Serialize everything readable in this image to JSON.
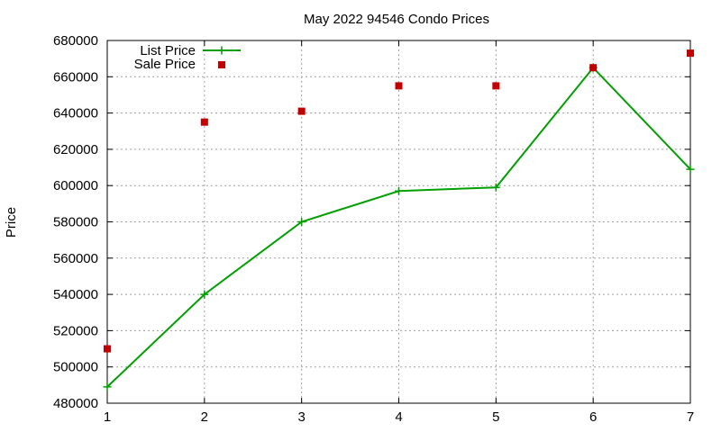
{
  "chart_data": {
    "type": "line",
    "title": "May 2022 94546 Condo Prices",
    "xlabel": "",
    "ylabel": "Price",
    "x": [
      1,
      2,
      3,
      4,
      5,
      6,
      7
    ],
    "xlim": [
      1,
      7
    ],
    "ylim": [
      480000,
      680000
    ],
    "xticks": [
      1,
      2,
      3,
      4,
      5,
      6,
      7
    ],
    "yticks": [
      480000,
      500000,
      520000,
      540000,
      560000,
      580000,
      600000,
      620000,
      640000,
      660000,
      680000
    ],
    "grid": true,
    "legend_position": "top-left",
    "series": [
      {
        "name": "List Price",
        "type": "line",
        "color": "#00a000",
        "marker": "plus",
        "values": [
          489000,
          540000,
          580000,
          597000,
          599000,
          665000,
          609000
        ]
      },
      {
        "name": "Sale Price",
        "type": "scatter",
        "color": "#c00000",
        "marker": "square",
        "values": [
          510000,
          635000,
          641000,
          655000,
          655000,
          665000,
          673000
        ]
      }
    ]
  }
}
